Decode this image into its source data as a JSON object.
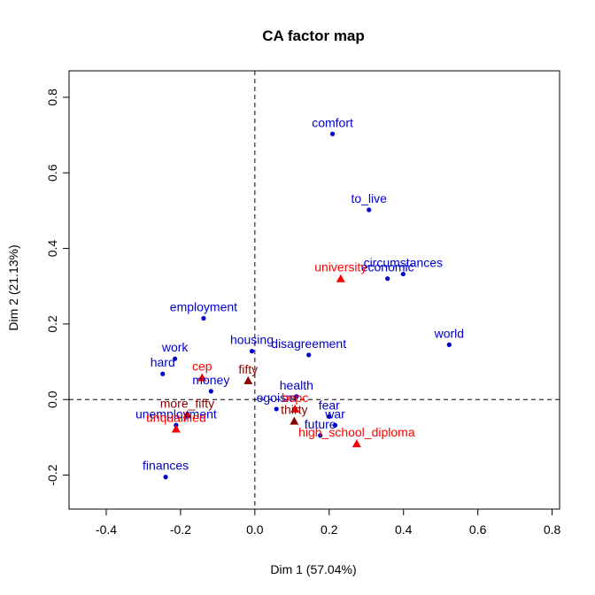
{
  "chart_data": {
    "type": "scatter",
    "title": "CA factor map",
    "xlabel": "Dim 1 (57.04%)",
    "ylabel": "Dim 2 (21.13%)",
    "xlim": [
      -0.5,
      0.82
    ],
    "ylim": [
      -0.29,
      0.87
    ],
    "x_ticks": [
      "-0.4",
      "-0.2",
      "0.0",
      "0.2",
      "0.4",
      "0.6",
      "0.8"
    ],
    "y_ticks": [
      "-0.2",
      "0.0",
      "0.2",
      "0.4",
      "0.6",
      "0.8"
    ],
    "x_tick_values": [
      -0.4,
      -0.2,
      0.0,
      0.2,
      0.4,
      0.6,
      0.8
    ],
    "y_tick_values": [
      -0.2,
      0.0,
      0.2,
      0.4,
      0.6,
      0.8
    ],
    "grid": false,
    "reference_lines": {
      "x": 0,
      "y": 0,
      "style": "dashed"
    },
    "series": [
      {
        "marker": "circle",
        "color": "#0000CD",
        "label_color": "#0000CD",
        "points": [
          {
            "label": "comfort",
            "x": 0.209,
            "y": 0.703
          },
          {
            "label": "to_live",
            "x": 0.307,
            "y": 0.502
          },
          {
            "label": "circumstances",
            "x": 0.399,
            "y": 0.332
          },
          {
            "label": "economic",
            "x": 0.357,
            "y": 0.32
          },
          {
            "label": "world",
            "x": 0.523,
            "y": 0.145
          },
          {
            "label": "employment",
            "x": -0.138,
            "y": 0.215
          },
          {
            "label": "housing",
            "x": -0.008,
            "y": 0.128
          },
          {
            "label": "disagreement",
            "x": 0.145,
            "y": 0.118
          },
          {
            "label": "work",
            "x": -0.215,
            "y": 0.108
          },
          {
            "label": "hard",
            "x": -0.248,
            "y": 0.068
          },
          {
            "label": "money",
            "x": -0.118,
            "y": 0.022
          },
          {
            "label": "health",
            "x": 0.112,
            "y": 0.008
          },
          {
            "label": "egoism",
            "x": 0.058,
            "y": -0.025
          },
          {
            "label": "fear",
            "x": 0.2,
            "y": -0.045
          },
          {
            "label": "war",
            "x": 0.216,
            "y": -0.068
          },
          {
            "label": "future",
            "x": 0.176,
            "y": -0.095
          },
          {
            "label": "unemployment",
            "x": -0.212,
            "y": -0.068
          },
          {
            "label": "finances",
            "x": -0.24,
            "y": -0.205
          }
        ]
      },
      {
        "marker": "triangle",
        "color": "#FF0000",
        "label_color": "#FF0000",
        "points": [
          {
            "label": "university",
            "x": 0.231,
            "y": 0.32
          },
          {
            "label": "cep",
            "x": -0.142,
            "y": 0.058
          },
          {
            "label": "bepc",
            "x": 0.108,
            "y": -0.025
          },
          {
            "label": "unqualified",
            "x": -0.212,
            "y": -0.078
          },
          {
            "label": "high_school_diploma",
            "x": 0.274,
            "y": -0.117
          }
        ]
      },
      {
        "marker": "triangle",
        "color": "#8B0000",
        "label_color": "#8B0000",
        "points": [
          {
            "label": "fifty",
            "x": -0.018,
            "y": 0.05
          },
          {
            "label": "more_fifty",
            "x": -0.182,
            "y": -0.04
          },
          {
            "label": "thirty",
            "x": 0.106,
            "y": -0.057
          }
        ]
      }
    ]
  }
}
